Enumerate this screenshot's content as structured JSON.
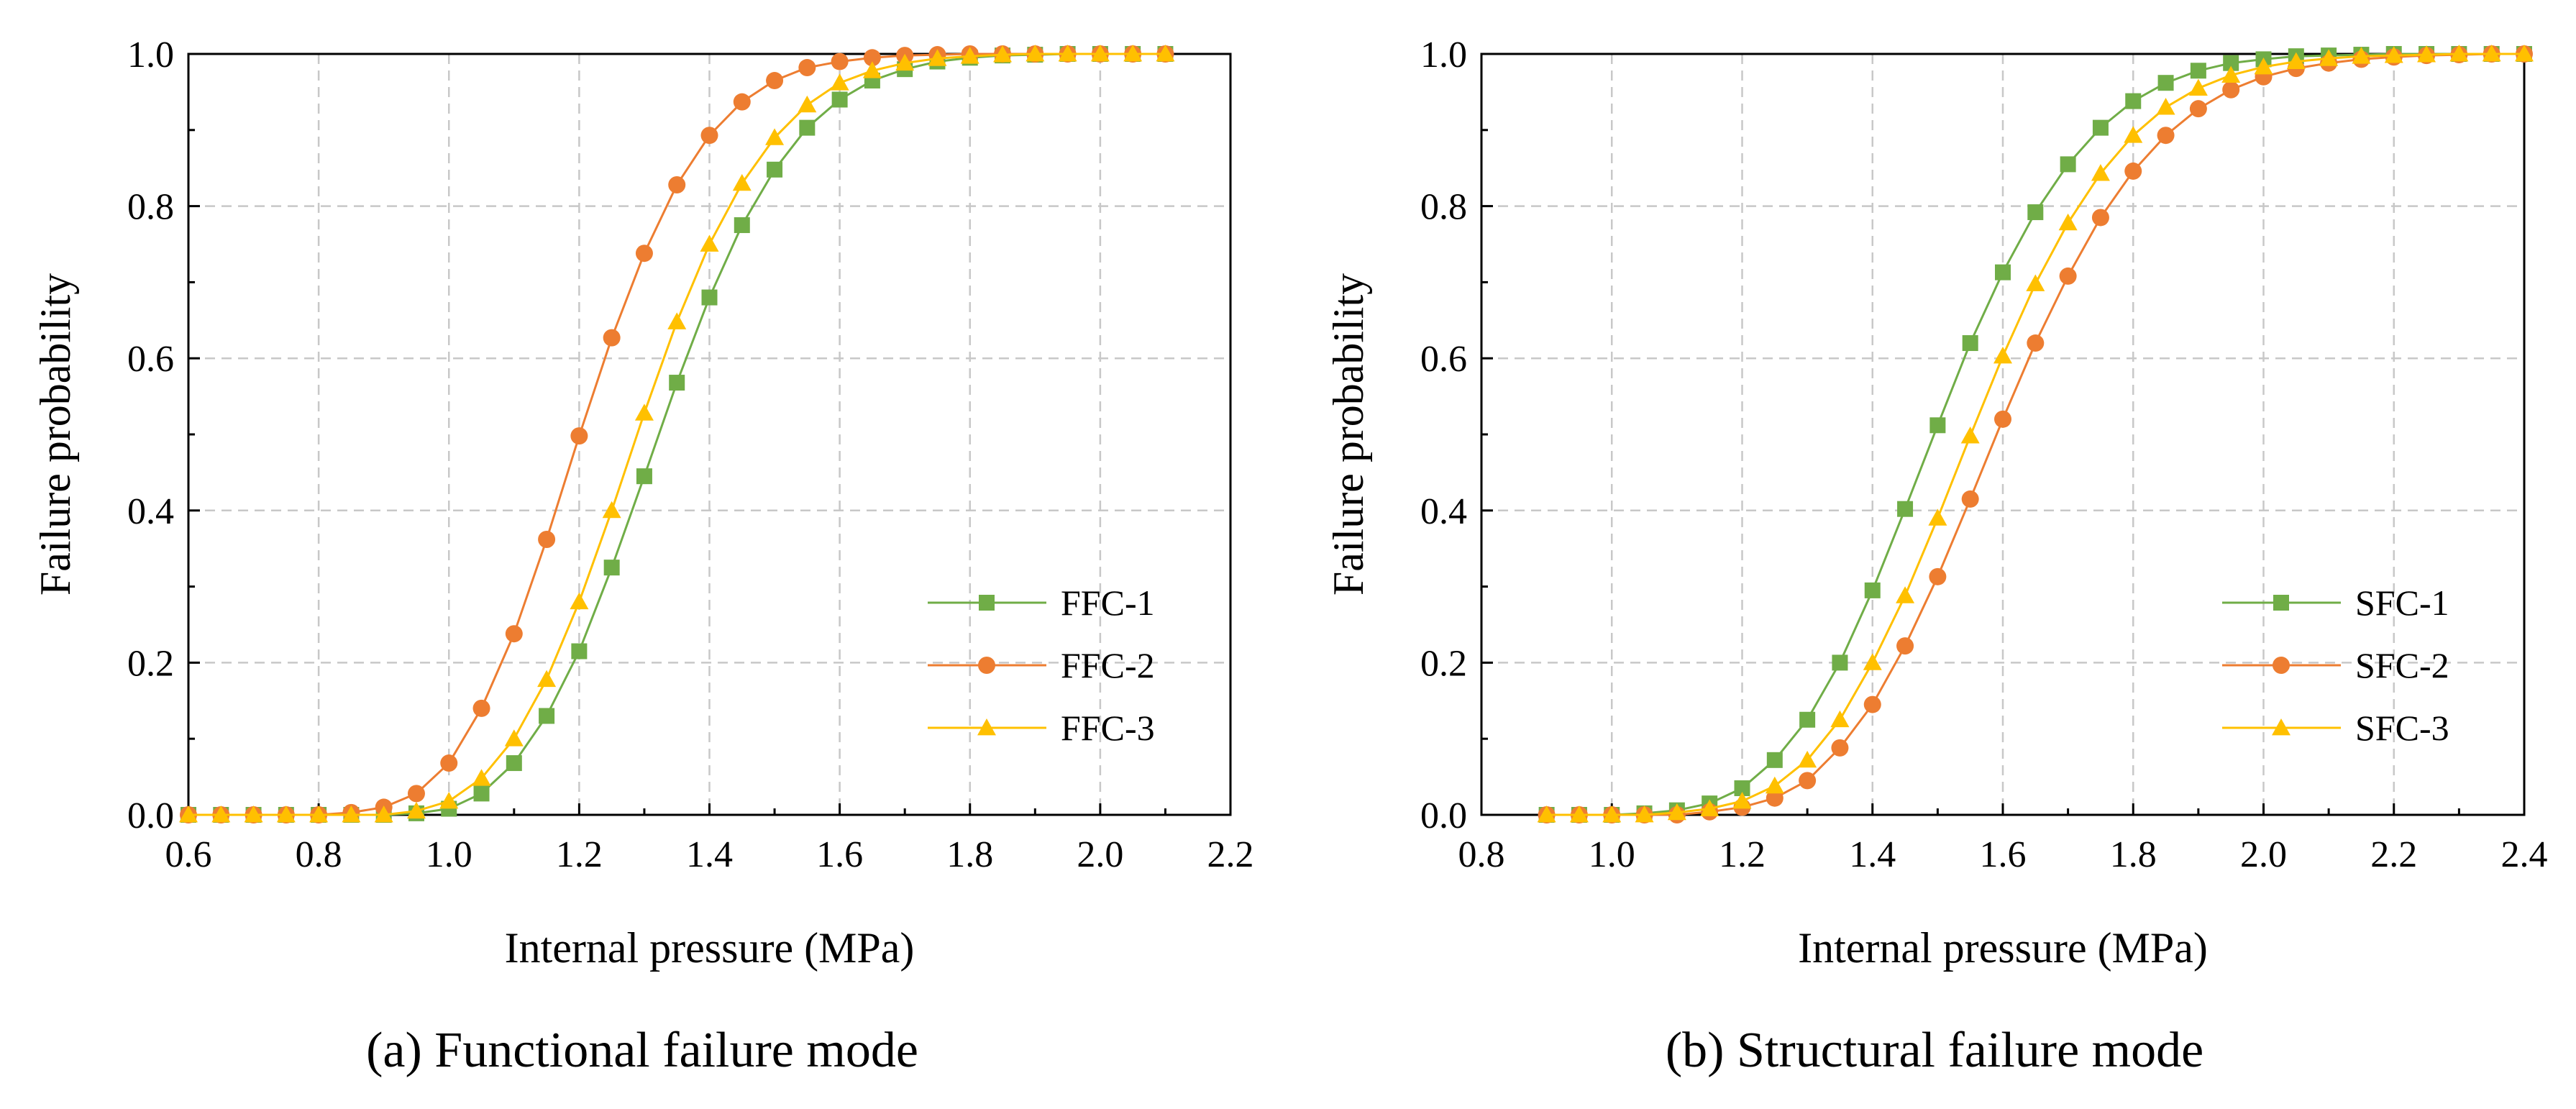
{
  "chart_data": [
    {
      "type": "line",
      "caption": "(a) Functional failure mode",
      "xlabel": "Internal pressure (MPa)",
      "ylabel": "Failure probability",
      "xlim": [
        0.6,
        2.2
      ],
      "ylim": [
        0.0,
        1.0
      ],
      "xticks": [
        "0.6",
        "0.8",
        "1.0",
        "1.2",
        "1.4",
        "1.6",
        "1.8",
        "2.0",
        "2.2"
      ],
      "yticks": [
        "0.0",
        "0.2",
        "0.4",
        "0.6",
        "0.8",
        "1.0"
      ],
      "grid": true,
      "legend_position": "bottom-right",
      "x": [
        0.6,
        0.65,
        0.7,
        0.75,
        0.8,
        0.85,
        0.9,
        0.95,
        1.0,
        1.05,
        1.1,
        1.15,
        1.2,
        1.25,
        1.3,
        1.35,
        1.4,
        1.45,
        1.5,
        1.55,
        1.6,
        1.65,
        1.7,
        1.75,
        1.8,
        1.85,
        1.9,
        1.95,
        2.0,
        2.05,
        2.1
      ],
      "series": [
        {
          "name": "FFC-1",
          "color": "#70AD47",
          "marker": "square",
          "values": [
            0.0,
            0.0,
            0.0,
            0.0,
            0.0,
            0.0,
            0.0,
            0.002,
            0.008,
            0.028,
            0.068,
            0.13,
            0.215,
            0.325,
            0.445,
            0.568,
            0.68,
            0.775,
            0.848,
            0.903,
            0.94,
            0.965,
            0.98,
            0.99,
            0.995,
            0.998,
            0.999,
            1.0,
            1.0,
            1.0,
            1.0
          ]
        },
        {
          "name": "FFC-2",
          "color": "#ED7D31",
          "marker": "circle",
          "values": [
            0.0,
            0.0,
            0.0,
            0.0,
            0.0,
            0.003,
            0.01,
            0.028,
            0.068,
            0.14,
            0.238,
            0.362,
            0.498,
            0.627,
            0.738,
            0.828,
            0.893,
            0.937,
            0.965,
            0.982,
            0.99,
            0.995,
            0.998,
            0.999,
            1.0,
            1.0,
            1.0,
            1.0,
            1.0,
            1.0,
            1.0
          ]
        },
        {
          "name": "FFC-3",
          "color": "#FFC000",
          "marker": "triangle",
          "values": [
            0.0,
            0.0,
            0.0,
            0.0,
            0.0,
            0.0,
            0.0,
            0.005,
            0.018,
            0.048,
            0.1,
            0.178,
            0.28,
            0.4,
            0.528,
            0.648,
            0.75,
            0.83,
            0.89,
            0.933,
            0.962,
            0.978,
            0.988,
            0.994,
            0.997,
            0.999,
            1.0,
            1.0,
            1.0,
            1.0,
            1.0
          ]
        }
      ]
    },
    {
      "type": "line",
      "caption": "(b) Structural failure mode",
      "xlabel": "Internal pressure (MPa)",
      "ylabel": "Failure probability",
      "xlim": [
        0.8,
        2.4
      ],
      "ylim": [
        0.0,
        1.0
      ],
      "xticks": [
        "0.8",
        "1.0",
        "1.2",
        "1.4",
        "1.6",
        "1.8",
        "2.0",
        "2.2",
        "2.4"
      ],
      "yticks": [
        "0.0",
        "0.2",
        "0.4",
        "0.6",
        "0.8",
        "1.0"
      ],
      "grid": true,
      "legend_position": "bottom-right",
      "x": [
        0.9,
        0.95,
        1.0,
        1.05,
        1.1,
        1.15,
        1.2,
        1.25,
        1.3,
        1.35,
        1.4,
        1.45,
        1.5,
        1.55,
        1.6,
        1.65,
        1.7,
        1.75,
        1.8,
        1.85,
        1.9,
        1.95,
        2.0,
        2.05,
        2.1,
        2.15,
        2.2,
        2.25,
        2.3,
        2.35,
        2.4
      ],
      "series": [
        {
          "name": "SFC-1",
          "color": "#70AD47",
          "marker": "square",
          "values": [
            0.0,
            0.0,
            0.0,
            0.002,
            0.006,
            0.015,
            0.035,
            0.072,
            0.125,
            0.2,
            0.295,
            0.402,
            0.512,
            0.62,
            0.713,
            0.792,
            0.855,
            0.903,
            0.938,
            0.962,
            0.978,
            0.988,
            0.993,
            0.997,
            0.998,
            0.999,
            1.0,
            1.0,
            1.0,
            1.0,
            1.0
          ]
        },
        {
          "name": "SFC-2",
          "color": "#ED7D31",
          "marker": "circle",
          "values": [
            0.0,
            0.0,
            0.0,
            0.0,
            0.0,
            0.004,
            0.01,
            0.022,
            0.045,
            0.088,
            0.145,
            0.222,
            0.313,
            0.415,
            0.52,
            0.62,
            0.708,
            0.785,
            0.846,
            0.893,
            0.928,
            0.953,
            0.97,
            0.981,
            0.988,
            0.993,
            0.996,
            0.998,
            0.999,
            1.0,
            1.0
          ]
        },
        {
          "name": "SFC-3",
          "color": "#FFC000",
          "marker": "triangle",
          "values": [
            0.0,
            0.0,
            0.0,
            0.0,
            0.003,
            0.008,
            0.018,
            0.038,
            0.072,
            0.125,
            0.2,
            0.288,
            0.39,
            0.498,
            0.603,
            0.698,
            0.778,
            0.843,
            0.893,
            0.93,
            0.955,
            0.972,
            0.983,
            0.99,
            0.994,
            0.997,
            0.998,
            0.999,
            1.0,
            1.0,
            1.0
          ]
        }
      ]
    }
  ]
}
